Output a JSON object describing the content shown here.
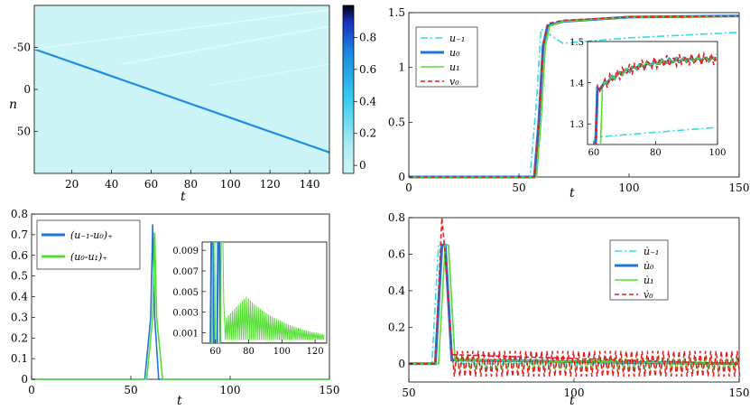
{
  "figure": [
    {
      "id": "heatmap",
      "chart_data": {
        "type": "heatmap",
        "xlabel": "t",
        "ylabel": "n",
        "xlim": [
          1,
          150
        ],
        "ylim": [
          -100,
          100
        ],
        "xticks": [
          20,
          40,
          60,
          80,
          100,
          120,
          140
        ],
        "yticks": [
          -50,
          0,
          50
        ],
        "background_value": 0,
        "front_line": {
          "t": [
            1,
            150
          ],
          "n": [
            -48,
            75
          ],
          "value": 0.75
        },
        "colorbar": {
          "min": -0.05,
          "max": 1.0,
          "ticks": [
            0,
            0.2,
            0.4,
            0.6,
            0.8
          ]
        }
      }
    },
    {
      "id": "u-profiles",
      "chart_data": {
        "type": "line",
        "xlabel": "t",
        "xlim": [
          0,
          150
        ],
        "ylim": [
          0,
          1.5
        ],
        "xticks": [
          0,
          50,
          100,
          150
        ],
        "yticks": [
          0,
          0.5,
          1,
          1.5
        ],
        "legend": [
          "u₋₁",
          "u₀",
          "u₁",
          "v₀"
        ],
        "legend_placement": "top-left",
        "series": [
          {
            "name": "u₋₁",
            "color": "#33dddd",
            "style": "dash-dot",
            "x": [
              0,
              55,
              58,
              60,
              70,
              100,
              150
            ],
            "y": [
              0,
              0,
              0.7,
              1.35,
              1.22,
              1.27,
              1.32
            ]
          },
          {
            "name": "u₀",
            "color": "#1f74d6",
            "style": "solid-thick",
            "x": [
              0,
              57,
              59,
              61,
              63,
              70,
              100,
              150
            ],
            "y": [
              0,
              0,
              0.5,
              1.2,
              1.38,
              1.42,
              1.46,
              1.47
            ]
          },
          {
            "name": "u₁",
            "color": "#55dd33",
            "style": "solid",
            "x": [
              0,
              58,
              60,
              62,
              64,
              70,
              100,
              150
            ],
            "y": [
              0,
              0,
              0.5,
              1.2,
              1.38,
              1.42,
              1.46,
              1.47
            ]
          },
          {
            "name": "v₀",
            "color": "#e02020",
            "style": "dashed",
            "x": [
              0,
              57,
              59,
              61,
              63,
              70,
              100,
              150
            ],
            "y": [
              0,
              0,
              0.5,
              1.2,
              1.4,
              1.43,
              1.46,
              1.47
            ]
          }
        ],
        "inset": {
          "xlim": [
            58,
            100
          ],
          "ylim": [
            1.25,
            1.5
          ],
          "xticks": [
            60,
            80,
            100
          ],
          "yticks": [
            1.3,
            1.4,
            1.5
          ]
        }
      }
    },
    {
      "id": "differences",
      "chart_data": {
        "type": "line",
        "xlabel": "t",
        "xlim": [
          0,
          150
        ],
        "ylim": [
          0,
          0.8
        ],
        "xticks": [
          0,
          50,
          100,
          150
        ],
        "yticks": [
          0,
          0.1,
          0.2,
          0.3,
          0.4,
          0.5,
          0.6,
          0.7,
          0.8
        ],
        "legend": [
          "(u₋₁-u₀)₊",
          "(u₀-u₁)₊"
        ],
        "legend_placement": "top-left",
        "series": [
          {
            "name": "(u₋₁-u₀)₊",
            "color": "#1f74d6",
            "x": [
              0,
              57,
              60,
              61,
              62,
              64,
              150
            ],
            "y": [
              0,
              0,
              0.3,
              0.75,
              0.3,
              0,
              0
            ]
          },
          {
            "name": "(u₀-u₁)₊",
            "color": "#55dd33",
            "x": [
              0,
              58,
              61,
              62,
              63,
              66,
              150
            ],
            "y": [
              0,
              0,
              0.3,
              0.71,
              0.3,
              0,
              0
            ]
          }
        ],
        "inset": {
          "xlim": [
            52,
            127
          ],
          "ylim": [
            0,
            0.0098
          ],
          "xticks": [
            60,
            80,
            100,
            120
          ],
          "yticks": [
            0.001,
            0.003,
            0.005,
            0.007,
            0.009
          ]
        }
      }
    },
    {
      "id": "derivatives",
      "chart_data": {
        "type": "line",
        "xlabel": "t",
        "xlim": [
          50,
          150
        ],
        "ylim": [
          -0.1,
          0.8
        ],
        "xticks": [
          50,
          100,
          150
        ],
        "yticks": [
          0,
          0.2,
          0.4,
          0.6,
          0.8
        ],
        "legend": [
          "u̇₋₁",
          "u̇₀",
          "u̇₁",
          "v̇₀"
        ],
        "legend_placement": "top-right",
        "series": [
          {
            "name": "u̇₋₁",
            "color": "#33dddd",
            "style": "dash-dot",
            "x": [
              50,
              57,
              59,
              60,
              62,
              64,
              150
            ],
            "y": [
              0,
              0,
              0.65,
              0.65,
              0.65,
              0.0,
              0.0
            ]
          },
          {
            "name": "u̇₀",
            "color": "#1f74d6",
            "style": "solid-thick",
            "x": [
              50,
              58,
              60,
              61,
              63,
              150
            ],
            "y": [
              0,
              0,
              0.65,
              0.65,
              0.02,
              0.0
            ]
          },
          {
            "name": "u̇₁",
            "color": "#55dd33",
            "style": "solid",
            "x": [
              50,
              59,
              61,
              62,
              64,
              150
            ],
            "y": [
              0,
              0,
              0.65,
              0.65,
              0.02,
              0.0
            ]
          },
          {
            "name": "v̇₀",
            "color": "#e02020",
            "style": "dashed",
            "x": [
              50,
              58,
              60,
              61,
              63,
              150
            ],
            "y": [
              0,
              0,
              0.8,
              0.6,
              0.05,
              0.0
            ]
          }
        ]
      }
    }
  ]
}
